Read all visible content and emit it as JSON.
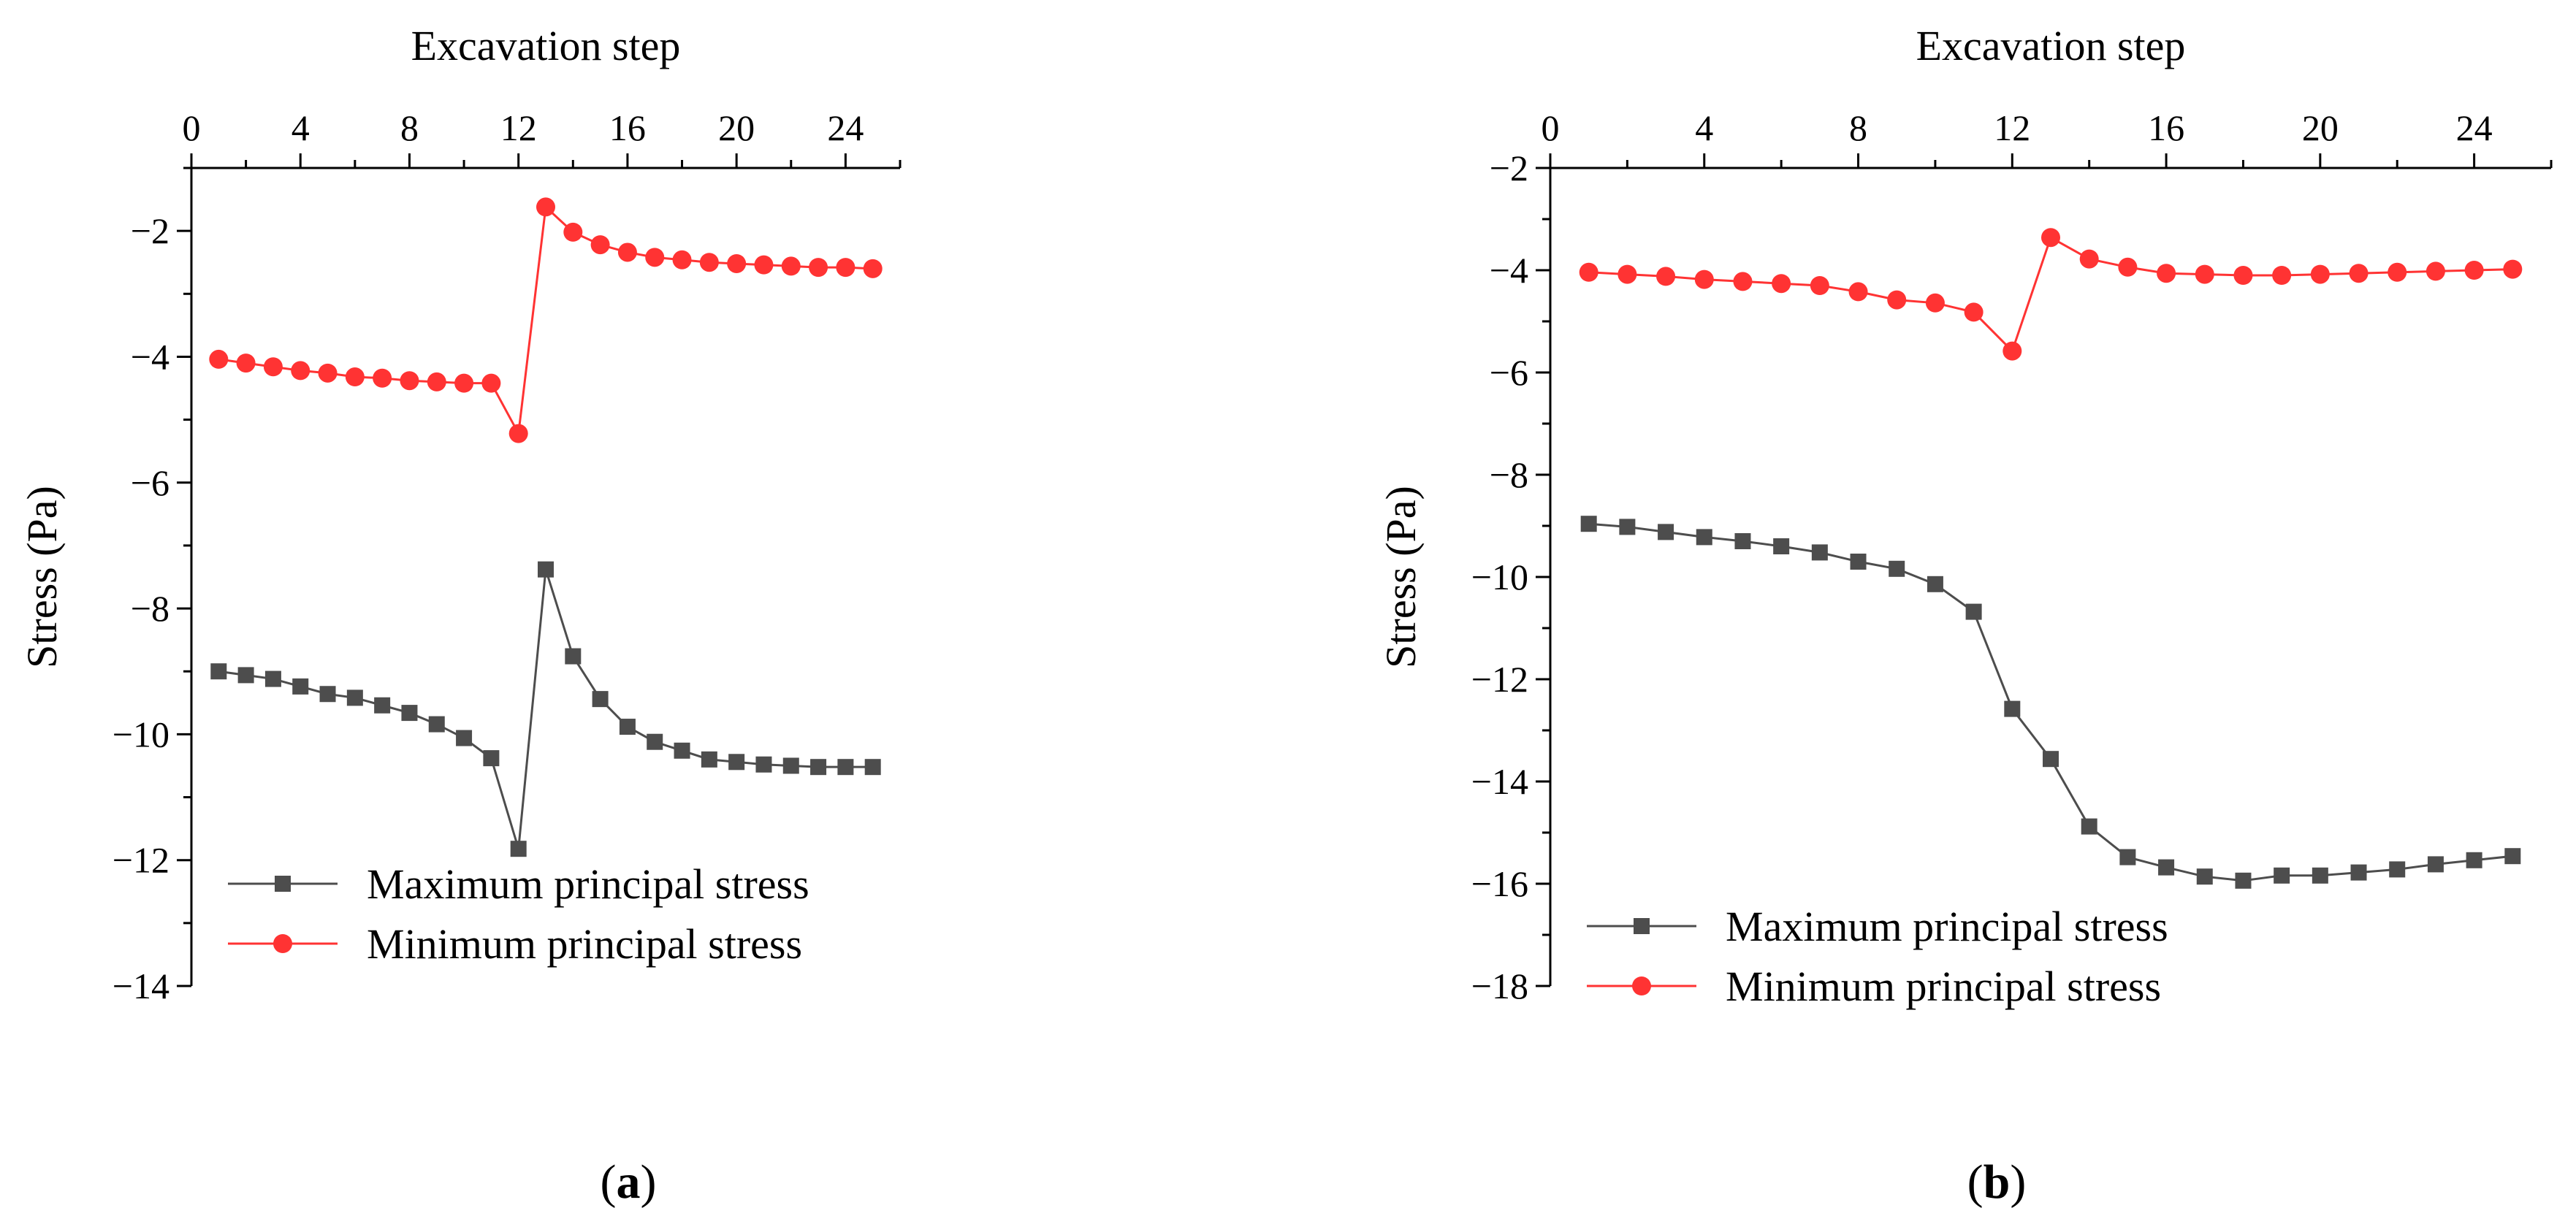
{
  "chart_data": [
    {
      "type": "line",
      "panel_label": "(a)",
      "xlabel": "Excavation step",
      "ylabel": "Stress (Pa)",
      "xlim": [
        0,
        26
      ],
      "ylim": [
        -14,
        -1
      ],
      "xticks": [
        0,
        4,
        8,
        12,
        16,
        20,
        24
      ],
      "yticks": [
        -14,
        -12,
        -10,
        -8,
        -6,
        -4,
        -2
      ],
      "x_axis_position": "top",
      "grid": false,
      "legend_position": "bottom-left",
      "x": [
        1,
        2,
        3,
        4,
        5,
        6,
        7,
        8,
        9,
        10,
        11,
        12,
        13,
        14,
        15,
        16,
        17,
        18,
        19,
        20,
        21,
        22,
        23,
        24,
        25
      ],
      "series": [
        {
          "name": "Maximum principal stress",
          "marker": "square",
          "color": "#4d4d4d",
          "values": [
            -9.0,
            -9.06,
            -9.12,
            -9.24,
            -9.36,
            -9.42,
            -9.54,
            -9.66,
            -9.84,
            -10.06,
            -10.38,
            -11.82,
            -7.38,
            -8.76,
            -9.44,
            -9.88,
            -10.12,
            -10.26,
            -10.4,
            -10.44,
            -10.48,
            -10.5,
            -10.52,
            -10.52,
            -10.52
          ]
        },
        {
          "name": "Minimum principal stress",
          "marker": "circle",
          "color": "#ff3333",
          "values": [
            -4.04,
            -4.1,
            -4.16,
            -4.22,
            -4.26,
            -4.32,
            -4.34,
            -4.38,
            -4.4,
            -4.42,
            -4.42,
            -5.22,
            -1.62,
            -2.02,
            -2.22,
            -2.34,
            -2.42,
            -2.46,
            -2.5,
            -2.52,
            -2.54,
            -2.56,
            -2.58,
            -2.58,
            -2.6
          ]
        }
      ]
    },
    {
      "type": "line",
      "panel_label": "(b)",
      "xlabel": "Excavation step",
      "ylabel": "Stress (Pa)",
      "xlim": [
        0,
        26
      ],
      "ylim": [
        -18,
        -2
      ],
      "xticks": [
        0,
        4,
        8,
        12,
        16,
        20,
        24
      ],
      "yticks": [
        -18,
        -16,
        -14,
        -12,
        -10,
        -8,
        -6,
        -4,
        -2
      ],
      "x_axis_position": "top",
      "grid": false,
      "legend_position": "bottom-left",
      "x": [
        1,
        2,
        3,
        4,
        5,
        6,
        7,
        8,
        9,
        10,
        11,
        12,
        13,
        14,
        15,
        16,
        17,
        18,
        19,
        20,
        21,
        22,
        23,
        24,
        25
      ],
      "series": [
        {
          "name": "Maximum principal stress",
          "marker": "square",
          "color": "#4d4d4d",
          "values": [
            -8.96,
            -9.02,
            -9.12,
            -9.22,
            -9.3,
            -9.4,
            -9.52,
            -9.7,
            -9.84,
            -10.14,
            -10.68,
            -12.58,
            -13.56,
            -14.88,
            -15.48,
            -15.68,
            -15.86,
            -15.94,
            -15.84,
            -15.84,
            -15.78,
            -15.72,
            -15.62,
            -15.54,
            -15.46
          ]
        },
        {
          "name": "Minimum principal stress",
          "marker": "circle",
          "color": "#ff3333",
          "values": [
            -4.04,
            -4.08,
            -4.12,
            -4.18,
            -4.22,
            -4.26,
            -4.3,
            -4.42,
            -4.58,
            -4.64,
            -4.82,
            -5.58,
            -3.36,
            -3.78,
            -3.94,
            -4.06,
            -4.08,
            -4.1,
            -4.1,
            -4.08,
            -4.06,
            -4.04,
            -4.02,
            -4.0,
            -3.98
          ]
        }
      ]
    }
  ]
}
